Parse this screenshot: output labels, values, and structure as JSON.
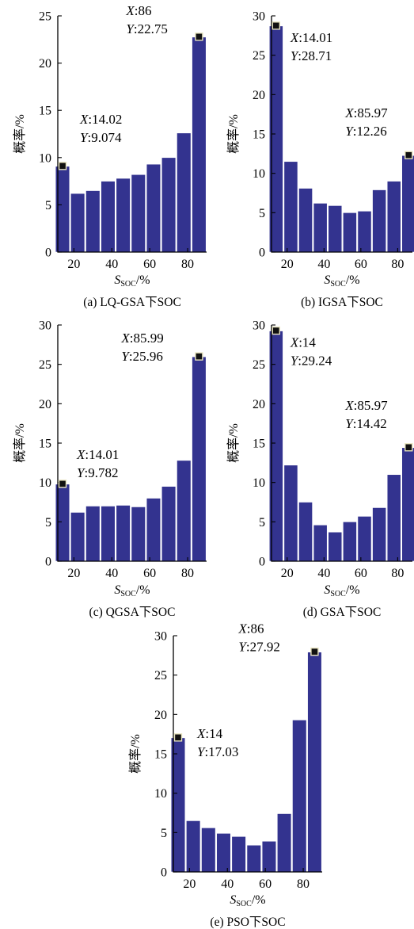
{
  "chart_data": [
    {
      "type": "bar",
      "caption": "(a)  LQ-GSA下SOC",
      "xlabel_main": "S",
      "xlabel_sub": "SOC",
      "xlabel_suffix": "/%",
      "ylabel": "概率/%",
      "x": [
        14,
        22,
        30,
        38,
        46,
        54,
        62,
        70,
        78,
        86
      ],
      "values": [
        9.074,
        6.2,
        6.5,
        7.5,
        7.8,
        8.2,
        9.3,
        10.0,
        12.6,
        22.75
      ],
      "xlim": [
        11.5,
        90
      ],
      "ylim": [
        0,
        25
      ],
      "xticks": [
        20,
        40,
        60,
        80
      ],
      "yticks": [
        0,
        5,
        10,
        15,
        20,
        25
      ],
      "annotations": [
        {
          "x_text": "X:14.02",
          "y_text": "Y:9.074",
          "x": 14.02,
          "y": 9.074
        },
        {
          "x_text": "X:86",
          "y_text": "Y:22.75",
          "x": 86,
          "y": 22.75
        }
      ]
    },
    {
      "type": "bar",
      "caption": "(b)  IGSA下SOC",
      "xlabel_main": "S",
      "xlabel_sub": "SOC",
      "xlabel_suffix": "/%",
      "ylabel": "概率/%",
      "x": [
        14.01,
        22,
        30,
        38,
        46,
        54,
        62,
        70,
        78,
        85.97
      ],
      "values": [
        28.71,
        11.5,
        8.1,
        6.2,
        5.9,
        5.0,
        5.2,
        7.9,
        9.0,
        12.26
      ],
      "xlim": [
        11.5,
        88
      ],
      "ylim": [
        0,
        30
      ],
      "xticks": [
        20,
        40,
        60,
        80
      ],
      "yticks": [
        0,
        5,
        10,
        15,
        20,
        25,
        30
      ],
      "annotations": [
        {
          "x_text": "X:14.01",
          "y_text": "Y:28.71",
          "x": 14.01,
          "y": 28.71
        },
        {
          "x_text": "X:85.97",
          "y_text": "Y:12.26",
          "x": 85.97,
          "y": 12.26
        }
      ]
    },
    {
      "type": "bar",
      "caption": "(c)  QGSA下SOC",
      "xlabel_main": "S",
      "xlabel_sub": "SOC",
      "xlabel_suffix": "/%",
      "ylabel": "概率/%",
      "x": [
        14.01,
        22,
        30,
        38,
        46,
        54,
        62,
        70,
        78,
        85.99
      ],
      "values": [
        9.782,
        6.2,
        7.0,
        7.0,
        7.1,
        6.9,
        8.0,
        9.5,
        12.8,
        25.96
      ],
      "xlim": [
        11.5,
        90
      ],
      "ylim": [
        0,
        30
      ],
      "xticks": [
        20,
        40,
        60,
        80
      ],
      "yticks": [
        0,
        5,
        10,
        15,
        20,
        25,
        30
      ],
      "annotations": [
        {
          "x_text": "X:14.01",
          "y_text": "Y:9.782",
          "x": 14.01,
          "y": 9.782
        },
        {
          "x_text": "X:85.99",
          "y_text": "Y:25.96",
          "x": 85.99,
          "y": 25.96
        }
      ]
    },
    {
      "type": "bar",
      "caption": "(d)  GSA下SOC",
      "xlabel_main": "S",
      "xlabel_sub": "SOC",
      "xlabel_suffix": "/%",
      "ylabel": "概率/%",
      "x": [
        14,
        22,
        30,
        38,
        46,
        54,
        62,
        70,
        78,
        85.97
      ],
      "values": [
        29.24,
        12.2,
        7.5,
        4.6,
        3.7,
        5.0,
        5.7,
        6.8,
        11.0,
        14.42
      ],
      "xlim": [
        11.5,
        88
      ],
      "ylim": [
        0,
        30
      ],
      "xticks": [
        20,
        40,
        60,
        80
      ],
      "yticks": [
        0,
        5,
        10,
        15,
        20,
        25,
        30
      ],
      "annotations": [
        {
          "x_text": "X:14",
          "y_text": "Y:29.24",
          "x": 14,
          "y": 29.24
        },
        {
          "x_text": "X:85.97",
          "y_text": "Y:14.42",
          "x": 85.97,
          "y": 14.42
        }
      ]
    },
    {
      "type": "bar",
      "caption": "(e)  PSO下SOC",
      "xlabel_main": "S",
      "xlabel_sub": "SOC",
      "xlabel_suffix": "/%",
      "ylabel": "概率/%",
      "x": [
        14,
        22,
        30,
        38,
        46,
        54,
        62,
        70,
        78,
        86
      ],
      "values": [
        17.03,
        6.5,
        5.6,
        4.9,
        4.5,
        3.4,
        3.9,
        7.4,
        19.3,
        27.92
      ],
      "xlim": [
        11.5,
        90
      ],
      "ylim": [
        0,
        30
      ],
      "xticks": [
        20,
        40,
        60,
        80
      ],
      "yticks": [
        0,
        5,
        10,
        15,
        20,
        25,
        30
      ],
      "annotations": [
        {
          "x_text": "X:14",
          "y_text": "Y:17.03",
          "x": 14,
          "y": 17.03
        },
        {
          "x_text": "X:86",
          "y_text": "Y:27.92",
          "x": 86,
          "y": 27.92
        }
      ]
    }
  ]
}
